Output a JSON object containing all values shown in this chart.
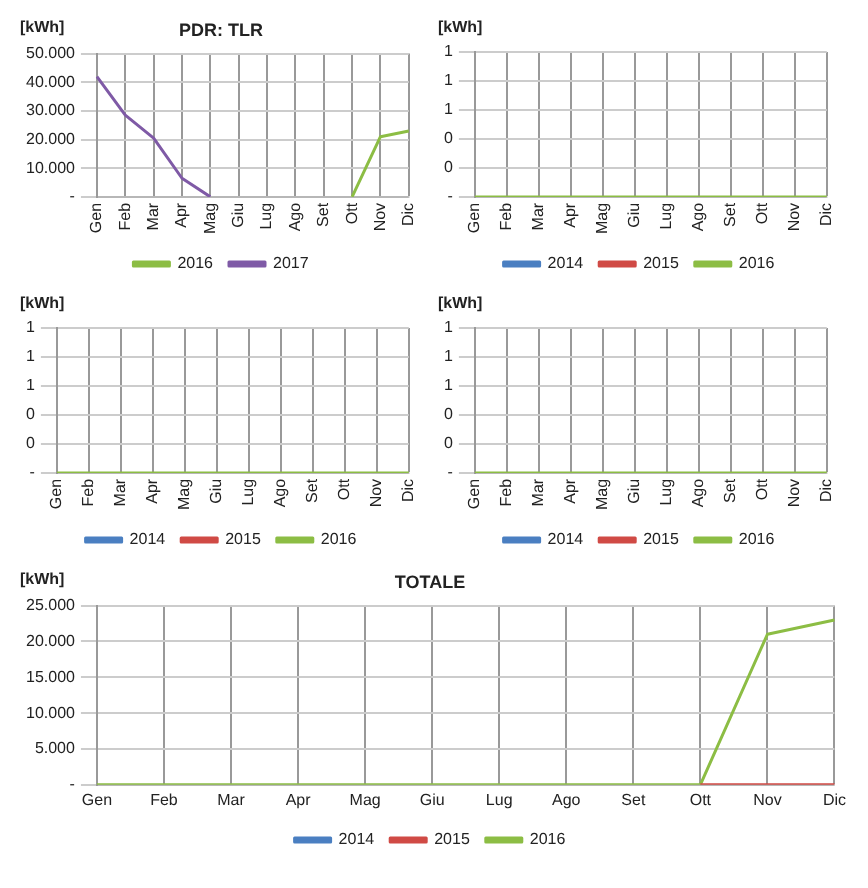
{
  "chart_data": [
    {
      "type": "line",
      "title": "PDR: TLR",
      "ylabel": "[kWh]",
      "categories": [
        "Gen",
        "Feb",
        "Mar",
        "Apr",
        "Mag",
        "Giu",
        "Lug",
        "Ago",
        "Set",
        "Ott",
        "Nov",
        "Dic"
      ],
      "series": [
        {
          "name": "2016",
          "color": "#8cbd44",
          "values": [
            null,
            null,
            null,
            null,
            null,
            null,
            null,
            null,
            null,
            0,
            21000,
            23000
          ]
        },
        {
          "name": "2017",
          "color": "#7f5aa6",
          "values": [
            42000,
            28500,
            20500,
            6500,
            0,
            null,
            null,
            null,
            null,
            null,
            null,
            null
          ]
        }
      ],
      "ylim": [
        0,
        50000
      ],
      "yticks": [
        {
          "value": 0,
          "label": "-"
        },
        {
          "value": 10000,
          "label": "10.000"
        },
        {
          "value": 20000,
          "label": "20.000"
        },
        {
          "value": 30000,
          "label": "30.000"
        },
        {
          "value": 40000,
          "label": "40.000"
        },
        {
          "value": 50000,
          "label": "50.000"
        }
      ],
      "grid": true,
      "legend": "bottom"
    },
    {
      "type": "line",
      "ylabel": "[kWh]",
      "categories": [
        "Gen",
        "Feb",
        "Mar",
        "Apr",
        "Mag",
        "Giu",
        "Lug",
        "Ago",
        "Set",
        "Ott",
        "Nov",
        "Dic"
      ],
      "series": [
        {
          "name": "2014",
          "color": "#4a7fc1",
          "values": [
            null,
            null,
            null,
            null,
            null,
            null,
            null,
            null,
            null,
            null,
            null,
            null
          ]
        },
        {
          "name": "2015",
          "color": "#d04a45",
          "values": [
            null,
            null,
            null,
            null,
            null,
            null,
            null,
            null,
            null,
            null,
            null,
            null
          ]
        },
        {
          "name": "2016",
          "color": "#8cbd44",
          "values": [
            0,
            0,
            0,
            0,
            0,
            0,
            0,
            0,
            0,
            0,
            0,
            0
          ]
        }
      ],
      "ylim": [
        0,
        1
      ],
      "yticks": [
        {
          "value": 0,
          "label": "-"
        },
        {
          "value": 0.2,
          "label": "0"
        },
        {
          "value": 0.4,
          "label": "0"
        },
        {
          "value": 0.6,
          "label": "1"
        },
        {
          "value": 0.8,
          "label": "1"
        },
        {
          "value": 1,
          "label": "1"
        }
      ],
      "grid": true,
      "legend": "bottom"
    },
    {
      "type": "line",
      "ylabel": "[kWh]",
      "categories": [
        "Gen",
        "Feb",
        "Mar",
        "Apr",
        "Mag",
        "Giu",
        "Lug",
        "Ago",
        "Set",
        "Ott",
        "Nov",
        "Dic"
      ],
      "series": [
        {
          "name": "2014",
          "color": "#4a7fc1",
          "values": [
            null,
            null,
            null,
            null,
            null,
            null,
            null,
            null,
            null,
            null,
            null,
            null
          ]
        },
        {
          "name": "2015",
          "color": "#d04a45",
          "values": [
            null,
            null,
            null,
            null,
            null,
            null,
            null,
            null,
            null,
            null,
            null,
            null
          ]
        },
        {
          "name": "2016",
          "color": "#8cbd44",
          "values": [
            0,
            0,
            0,
            0,
            0,
            0,
            0,
            0,
            0,
            0,
            0,
            0
          ]
        }
      ],
      "ylim": [
        0,
        1
      ],
      "yticks": [
        {
          "value": 0,
          "label": "-"
        },
        {
          "value": 0.2,
          "label": "0"
        },
        {
          "value": 0.4,
          "label": "0"
        },
        {
          "value": 0.6,
          "label": "1"
        },
        {
          "value": 0.8,
          "label": "1"
        },
        {
          "value": 1,
          "label": "1"
        }
      ],
      "grid": true,
      "legend": "bottom"
    },
    {
      "type": "line",
      "ylabel": "[kWh]",
      "categories": [
        "Gen",
        "Feb",
        "Mar",
        "Apr",
        "Mag",
        "Giu",
        "Lug",
        "Ago",
        "Set",
        "Ott",
        "Nov",
        "Dic"
      ],
      "series": [
        {
          "name": "2014",
          "color": "#4a7fc1",
          "values": [
            null,
            null,
            null,
            null,
            null,
            null,
            null,
            null,
            null,
            null,
            null,
            null
          ]
        },
        {
          "name": "2015",
          "color": "#d04a45",
          "values": [
            null,
            null,
            null,
            null,
            null,
            null,
            null,
            null,
            null,
            null,
            null,
            null
          ]
        },
        {
          "name": "2016",
          "color": "#8cbd44",
          "values": [
            0,
            0,
            0,
            0,
            0,
            0,
            0,
            0,
            0,
            0,
            0,
            0
          ]
        }
      ],
      "ylim": [
        0,
        1
      ],
      "yticks": [
        {
          "value": 0,
          "label": "-"
        },
        {
          "value": 0.2,
          "label": "0"
        },
        {
          "value": 0.4,
          "label": "0"
        },
        {
          "value": 0.6,
          "label": "1"
        },
        {
          "value": 0.8,
          "label": "1"
        },
        {
          "value": 1,
          "label": "1"
        }
      ],
      "grid": true,
      "legend": "bottom"
    },
    {
      "type": "line",
      "title": "TOTALE",
      "ylabel": "[kWh]",
      "categories": [
        "Gen",
        "Feb",
        "Mar",
        "Apr",
        "Mag",
        "Giu",
        "Lug",
        "Ago",
        "Set",
        "Ott",
        "Nov",
        "Dic"
      ],
      "series": [
        {
          "name": "2014",
          "color": "#4a7fc1",
          "values": [
            null,
            null,
            null,
            null,
            null,
            null,
            null,
            null,
            null,
            null,
            null,
            null
          ]
        },
        {
          "name": "2015",
          "color": "#d04a45",
          "values": [
            null,
            null,
            null,
            null,
            null,
            null,
            null,
            null,
            null,
            0,
            0,
            0
          ]
        },
        {
          "name": "2016",
          "color": "#8cbd44",
          "values": [
            0,
            0,
            0,
            0,
            0,
            0,
            0,
            0,
            0,
            0,
            21000,
            23000
          ]
        }
      ],
      "ylim": [
        0,
        25000
      ],
      "yticks": [
        {
          "value": 0,
          "label": "-"
        },
        {
          "value": 5000,
          "label": "5.000"
        },
        {
          "value": 10000,
          "label": "10.000"
        },
        {
          "value": 15000,
          "label": "15.000"
        },
        {
          "value": 20000,
          "label": "20.000"
        },
        {
          "value": 25000,
          "label": "25.000"
        }
      ],
      "grid": true,
      "legend": "bottom"
    }
  ]
}
